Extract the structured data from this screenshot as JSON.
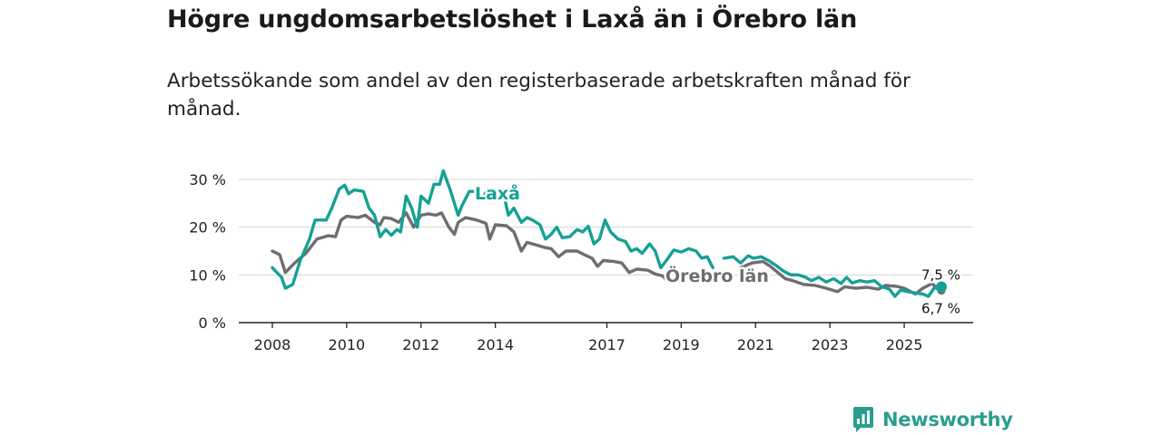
{
  "header": {
    "title": "Högre ungdomsarbetslöshet i Laxå än i Örebro län",
    "subtitle": "Arbetssökande som andel av den registerbaserade arbetskraften månad för månad."
  },
  "brand": {
    "name": "Newsworthy",
    "icon": "newsworthy-logo-icon",
    "color": "#2a9d8f"
  },
  "chart_data": {
    "type": "line",
    "title": "Högre ungdomsarbetslöshet i Laxå än i Örebro län",
    "ylabel": "",
    "xlabel": "",
    "xlim": [
      2008,
      2026.5
    ],
    "ylim": [
      0,
      30
    ],
    "y_ticks": [
      0,
      10,
      20,
      30
    ],
    "y_tick_labels": [
      "0 %",
      "10 %",
      "20 %",
      "30 %"
    ],
    "x_ticks": [
      2008,
      2010,
      2012,
      2014,
      2017,
      2019,
      2021,
      2023,
      2025
    ],
    "x_tick_labels": [
      "2008",
      "2010",
      "2012",
      "2014",
      "2017",
      "2019",
      "2021",
      "2023",
      "2025"
    ],
    "grid": true,
    "series": [
      {
        "name": "Örebro län",
        "label": "Örebro län",
        "color": "#6d6d72",
        "end_label": "6,7 %",
        "segments": [
          [
            [
              2008.0,
              15.0
            ],
            [
              2008.2,
              14.2
            ],
            [
              2008.35,
              10.5
            ],
            [
              2008.6,
              12.5
            ],
            [
              2008.9,
              14.5
            ],
            [
              2009.2,
              17.5
            ],
            [
              2009.5,
              18.2
            ],
            [
              2009.7,
              18.0
            ],
            [
              2009.85,
              21.5
            ],
            [
              2010.0,
              22.3
            ],
            [
              2010.3,
              22.0
            ],
            [
              2010.5,
              22.5
            ],
            [
              2010.75,
              21.0
            ],
            [
              2010.9,
              20.5
            ],
            [
              2011.0,
              22.0
            ],
            [
              2011.2,
              21.8
            ],
            [
              2011.4,
              21.0
            ],
            [
              2011.6,
              23.0
            ],
            [
              2011.8,
              20.0
            ],
            [
              2012.0,
              22.5
            ],
            [
              2012.2,
              22.8
            ],
            [
              2012.4,
              22.5
            ],
            [
              2012.55,
              23.0
            ],
            [
              2012.75,
              20.0
            ],
            [
              2012.9,
              18.5
            ],
            [
              2013.0,
              21.0
            ],
            [
              2013.2,
              22.0
            ],
            [
              2013.5,
              21.5
            ],
            [
              2013.75,
              20.8
            ],
            [
              2013.85,
              17.5
            ],
            [
              2014.0,
              20.5
            ],
            [
              2014.3,
              20.3
            ],
            [
              2014.5,
              19.0
            ],
            [
              2014.7,
              15.0
            ],
            [
              2014.85,
              16.8
            ],
            [
              2015.0,
              16.5
            ],
            [
              2015.3,
              15.8
            ],
            [
              2015.5,
              15.5
            ],
            [
              2015.7,
              13.8
            ],
            [
              2015.9,
              15.0
            ],
            [
              2016.2,
              15.0
            ],
            [
              2016.4,
              14.2
            ],
            [
              2016.6,
              13.5
            ],
            [
              2016.75,
              11.8
            ],
            [
              2016.9,
              13.0
            ],
            [
              2017.2,
              12.8
            ],
            [
              2017.4,
              12.5
            ],
            [
              2017.6,
              10.5
            ],
            [
              2017.8,
              11.2
            ],
            [
              2018.1,
              11.0
            ],
            [
              2018.3,
              10.2
            ],
            [
              2018.5,
              9.8
            ],
            [
              2018.65,
              8.6
            ]
          ],
          [
            [
              2020.6,
              11.5
            ],
            [
              2020.9,
              12.5
            ],
            [
              2021.2,
              12.8
            ],
            [
              2021.4,
              11.8
            ],
            [
              2021.6,
              10.5
            ],
            [
              2021.8,
              9.2
            ],
            [
              2022.0,
              8.8
            ],
            [
              2022.3,
              8.0
            ],
            [
              2022.6,
              7.8
            ],
            [
              2022.9,
              7.2
            ],
            [
              2023.2,
              6.5
            ],
            [
              2023.4,
              7.5
            ],
            [
              2023.7,
              7.2
            ],
            [
              2024.0,
              7.4
            ],
            [
              2024.3,
              7.0
            ],
            [
              2024.5,
              7.8
            ],
            [
              2024.8,
              7.6
            ],
            [
              2025.0,
              7.2
            ],
            [
              2025.3,
              6.0
            ],
            [
              2025.5,
              7.2
            ],
            [
              2025.75,
              8.2
            ],
            [
              2025.9,
              7.0
            ],
            [
              2026.0,
              6.7
            ]
          ]
        ]
      },
      {
        "name": "Laxå",
        "label": "Laxå",
        "color": "#15a194",
        "end_label": "7,5 %",
        "segments": [
          [
            [
              2008.0,
              11.5
            ],
            [
              2008.25,
              9.5
            ],
            [
              2008.35,
              7.2
            ],
            [
              2008.55,
              8.0
            ],
            [
              2008.75,
              13.0
            ],
            [
              2009.0,
              17.5
            ],
            [
              2009.15,
              21.5
            ],
            [
              2009.45,
              21.5
            ],
            [
              2009.6,
              24.0
            ],
            [
              2009.8,
              28.0
            ],
            [
              2009.95,
              28.8
            ],
            [
              2010.05,
              27.0
            ],
            [
              2010.2,
              27.8
            ],
            [
              2010.45,
              27.5
            ],
            [
              2010.6,
              24.0
            ],
            [
              2010.75,
              22.5
            ],
            [
              2010.9,
              18.0
            ],
            [
              2011.05,
              19.5
            ],
            [
              2011.2,
              18.3
            ],
            [
              2011.35,
              19.5
            ],
            [
              2011.45,
              19.0
            ],
            [
              2011.6,
              26.5
            ],
            [
              2011.75,
              24.0
            ],
            [
              2011.9,
              20.0
            ],
            [
              2012.0,
              26.5
            ],
            [
              2012.2,
              25.0
            ],
            [
              2012.35,
              29.0
            ],
            [
              2012.5,
              29.0
            ],
            [
              2012.6,
              31.8
            ],
            [
              2012.8,
              27.5
            ],
            [
              2013.0,
              22.5
            ],
            [
              2013.1,
              24.5
            ],
            [
              2013.3,
              27.5
            ],
            [
              2013.5,
              27.5
            ],
            [
              2013.65,
              26.0
            ],
            [
              2013.8,
              28.0
            ],
            [
              2013.95,
              26.5
            ],
            [
              2014.1,
              27.0
            ],
            [
              2014.25,
              26.0
            ],
            [
              2014.35,
              22.5
            ],
            [
              2014.5,
              24.0
            ],
            [
              2014.7,
              21.0
            ],
            [
              2014.85,
              22.0
            ],
            [
              2015.0,
              21.5
            ],
            [
              2015.2,
              20.5
            ],
            [
              2015.35,
              17.5
            ],
            [
              2015.5,
              18.5
            ],
            [
              2015.65,
              20.0
            ],
            [
              2015.8,
              17.8
            ],
            [
              2016.0,
              18.0
            ],
            [
              2016.2,
              19.5
            ],
            [
              2016.35,
              19.0
            ],
            [
              2016.5,
              20.2
            ],
            [
              2016.65,
              16.5
            ],
            [
              2016.8,
              17.5
            ],
            [
              2016.95,
              21.5
            ],
            [
              2017.1,
              19.0
            ],
            [
              2017.3,
              17.5
            ],
            [
              2017.5,
              17.0
            ],
            [
              2017.65,
              15.0
            ],
            [
              2017.8,
              15.5
            ],
            [
              2017.95,
              14.5
            ],
            [
              2018.15,
              16.5
            ],
            [
              2018.3,
              15.0
            ],
            [
              2018.45,
              11.5
            ],
            [
              2018.6,
              13.0
            ],
            [
              2018.8,
              15.2
            ],
            [
              2019.0,
              14.8
            ],
            [
              2019.2,
              15.5
            ],
            [
              2019.4,
              15.0
            ],
            [
              2019.55,
              13.5
            ],
            [
              2019.7,
              13.8
            ],
            [
              2019.85,
              11.5
            ]
          ],
          [
            [
              2020.15,
              13.5
            ],
            [
              2020.4,
              13.8
            ],
            [
              2020.6,
              12.5
            ],
            [
              2020.8,
              14.0
            ],
            [
              2020.95,
              13.5
            ],
            [
              2021.15,
              13.8
            ],
            [
              2021.35,
              13.0
            ],
            [
              2021.55,
              12.0
            ],
            [
              2021.75,
              10.8
            ],
            [
              2021.95,
              10.0
            ],
            [
              2022.15,
              10.0
            ],
            [
              2022.35,
              9.5
            ],
            [
              2022.5,
              8.8
            ],
            [
              2022.7,
              9.5
            ],
            [
              2022.9,
              8.5
            ],
            [
              2023.1,
              9.2
            ],
            [
              2023.3,
              8.2
            ],
            [
              2023.45,
              9.5
            ],
            [
              2023.6,
              8.3
            ],
            [
              2023.8,
              8.8
            ],
            [
              2024.0,
              8.5
            ],
            [
              2024.2,
              8.8
            ],
            [
              2024.4,
              7.5
            ],
            [
              2024.6,
              7.0
            ],
            [
              2024.75,
              5.5
            ],
            [
              2024.9,
              6.8
            ],
            [
              2025.1,
              6.5
            ],
            [
              2025.3,
              6.2
            ],
            [
              2025.5,
              6.0
            ],
            [
              2025.65,
              5.5
            ],
            [
              2025.8,
              7.2
            ],
            [
              2026.0,
              7.5
            ]
          ]
        ]
      }
    ]
  }
}
